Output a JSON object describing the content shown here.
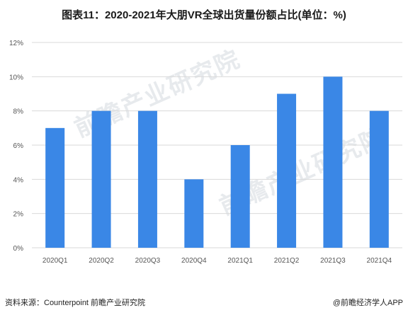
{
  "title": "图表11：2020-2021年大朋VR全球出货量份额占比(单位：%)",
  "footer": {
    "source": "资料来源：Counterpoint 前瞻产业研究院",
    "credit": "@前瞻经济学人APP"
  },
  "watermark": {
    "text": "前瞻产业研究院"
  },
  "colors": {
    "bar": "#3a87e6",
    "grid": "#d9d9d9",
    "axis_text": "#555555"
  },
  "chart_data": {
    "type": "bar",
    "categories": [
      "2020Q1",
      "2020Q2",
      "2020Q3",
      "2020Q4",
      "2021Q1",
      "2021Q2",
      "2021Q3",
      "2021Q4"
    ],
    "values": [
      7,
      8,
      8,
      4,
      6,
      9,
      10,
      8
    ],
    "yticks": [
      "0%",
      "2%",
      "4%",
      "6%",
      "8%",
      "10%",
      "12%"
    ],
    "ylim": [
      0,
      12
    ],
    "grid": true,
    "legend": "none",
    "title": "",
    "xlabel": "",
    "ylabel": ""
  }
}
